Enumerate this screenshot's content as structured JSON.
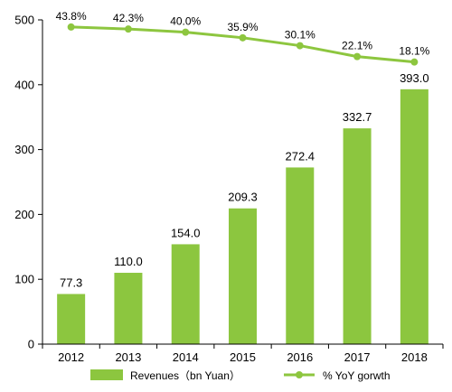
{
  "chart_data": {
    "type": "bar",
    "title": "",
    "xlabel": "",
    "ylabel": "",
    "ylim": [
      0,
      500
    ],
    "yticks": [
      "0",
      "100",
      "200",
      "300",
      "400",
      "500"
    ],
    "categories": [
      "2012",
      "2013",
      "2014",
      "2015",
      "2016",
      "2017",
      "2018"
    ],
    "series": [
      {
        "name": "Revenues（bn Yuan）",
        "type": "bar",
        "values": [
          77.3,
          110.0,
          154.0,
          209.3,
          272.4,
          332.7,
          393.0
        ],
        "labels": [
          "77.3",
          "110.0",
          "154.0",
          "209.3",
          "272.4",
          "332.7",
          "393.0"
        ],
        "color": "#8cc63f"
      },
      {
        "name": "% YoY gorwth",
        "type": "line",
        "values": [
          43.8,
          42.3,
          40.0,
          35.9,
          30.1,
          22.1,
          18.1
        ],
        "labels": [
          "43.8%",
          "42.3%",
          "40.0%",
          "35.9%",
          "30.1%",
          "22.1%",
          "18.1%"
        ],
        "color": "#8dc63f"
      }
    ],
    "grid": false,
    "legend_position": "bottom"
  }
}
